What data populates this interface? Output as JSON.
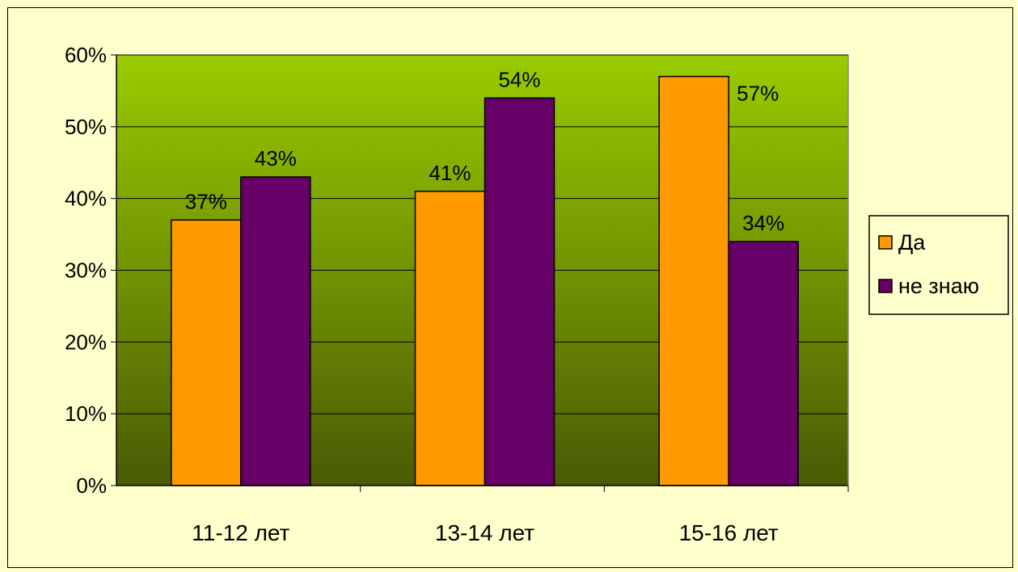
{
  "chart_data": {
    "type": "bar",
    "title": "",
    "xlabel": "",
    "ylabel": "",
    "categories": [
      "11-12 лет",
      "13-14 лет",
      "15-16 лет"
    ],
    "series": [
      {
        "name": "Да",
        "values": [
          37,
          41,
          57
        ],
        "color": "#ff9900",
        "labels": [
          "37%",
          "41%",
          "57%"
        ]
      },
      {
        "name": "не знаю",
        "values": [
          43,
          54,
          34
        ],
        "color": "#660066",
        "labels": [
          "43%",
          "54%",
          "34%"
        ]
      }
    ],
    "ylim": [
      0,
      60
    ],
    "yticks": [
      "0%",
      "10%",
      "20%",
      "30%",
      "40%",
      "50%",
      "60%"
    ],
    "grid": true,
    "legend_position": "right",
    "colors": {
      "background": "#ffffcc",
      "plot_top": "#99cc00",
      "plot_bottom": "#4a5a05"
    }
  }
}
